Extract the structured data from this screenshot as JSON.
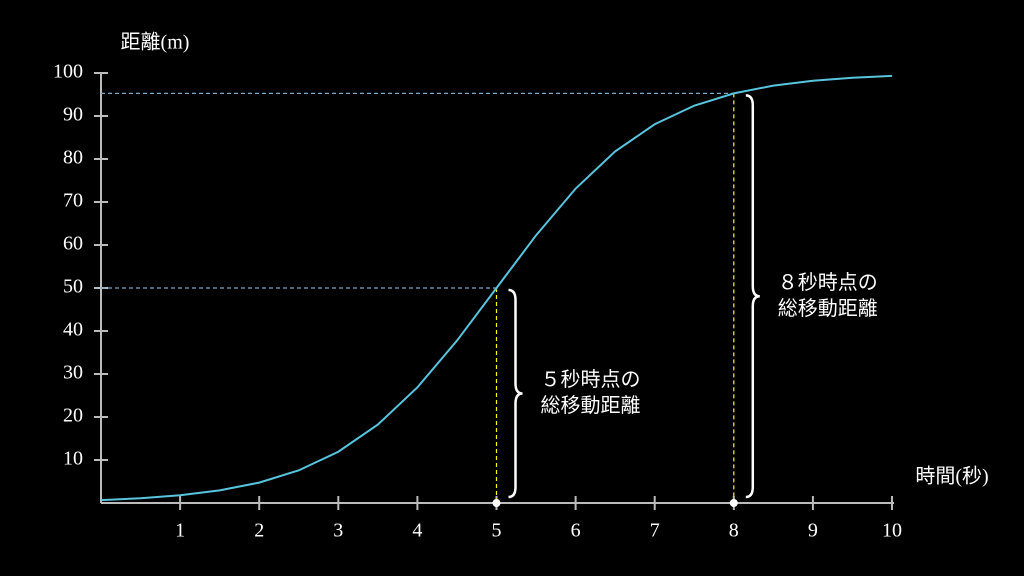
{
  "chart_data": {
    "type": "line",
    "ylabel": "距離(m)",
    "xlabel": "時間(秒)",
    "x": [
      0,
      0.5,
      1,
      1.5,
      2,
      2.5,
      3,
      3.5,
      4,
      4.5,
      5,
      5.5,
      6,
      6.5,
      7,
      7.5,
      8,
      8.5,
      9,
      9.5,
      10
    ],
    "values": [
      0.67,
      1.1,
      1.8,
      2.93,
      4.74,
      7.59,
      11.92,
      18.24,
      26.89,
      37.75,
      50,
      62.25,
      73.11,
      81.76,
      88.08,
      92.41,
      95.26,
      97.07,
      98.2,
      98.9,
      99.33
    ],
    "color": "#58c4dd",
    "xlim": [
      0,
      10
    ],
    "ylim": [
      0,
      100
    ],
    "xticks": [
      1,
      2,
      3,
      4,
      5,
      6,
      7,
      8,
      9,
      10
    ],
    "yticks": [
      10,
      20,
      30,
      40,
      50,
      60,
      70,
      80,
      90,
      100
    ],
    "annotations": [
      {
        "x": 5,
        "y": 50,
        "lines": [
          "５秒時点の",
          "総移動距離"
        ]
      },
      {
        "x": 8,
        "y": 95.26,
        "lines": [
          "８秒時点の",
          "総移動距離"
        ]
      }
    ]
  }
}
